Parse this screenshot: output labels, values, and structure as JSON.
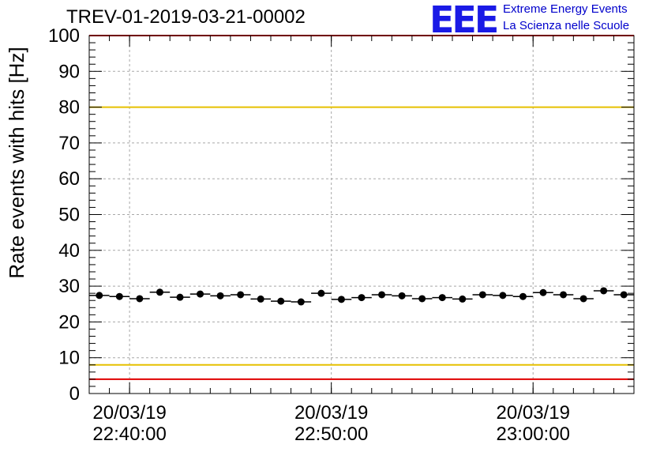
{
  "header": {
    "title": "TREV-01-2019-03-21-00002",
    "logo_mark": "EEE",
    "logo_line1": "Extreme Energy Events",
    "logo_line2": "La Scienza nelle Scuole"
  },
  "chart_data": {
    "type": "scatter",
    "title": "TREV-01-2019-03-21-00002",
    "xlabel": "",
    "ylabel": "Rate events with hits [Hz]",
    "ylim": [
      0,
      100
    ],
    "xlim": [
      "2019-03-20 22:38:00",
      "2019-03-20 23:05:00"
    ],
    "yticks": [
      0,
      10,
      20,
      30,
      40,
      50,
      60,
      70,
      80,
      90,
      100
    ],
    "xticks": [
      {
        "time": "2019-03-20 22:40:00",
        "date_label": "20/03/19",
        "time_label": "22:40:00"
      },
      {
        "time": "2019-03-20 22:50:00",
        "date_label": "20/03/19",
        "time_label": "22:50:00"
      },
      {
        "time": "2019-03-20 23:00:00",
        "date_label": "20/03/19",
        "time_label": "23:00:00"
      }
    ],
    "grid": true,
    "reference_lines": [
      {
        "y": 100,
        "color": "#e00000"
      },
      {
        "y": 80,
        "color": "#e6c000"
      },
      {
        "y": 8,
        "color": "#e6c000"
      },
      {
        "y": 4,
        "color": "#e00000"
      }
    ],
    "bin_width_minutes": 1,
    "series": [
      {
        "marker_color": "#000000",
        "x": [
          "22:38:30",
          "22:39:30",
          "22:40:30",
          "22:41:30",
          "22:42:30",
          "22:43:30",
          "22:44:30",
          "22:45:30",
          "22:46:30",
          "22:47:30",
          "22:48:30",
          "22:49:30",
          "22:50:30",
          "22:51:30",
          "22:52:30",
          "22:53:30",
          "22:54:30",
          "22:55:30",
          "22:56:30",
          "22:57:30",
          "22:58:30",
          "22:59:30",
          "23:00:30",
          "23:01:30",
          "23:02:30",
          "23:03:30",
          "23:04:30"
        ],
        "y": [
          27.4,
          27.1,
          26.5,
          28.3,
          26.9,
          27.8,
          27.3,
          27.6,
          26.4,
          25.8,
          25.6,
          28.0,
          26.3,
          26.8,
          27.6,
          27.3,
          26.5,
          26.8,
          26.4,
          27.6,
          27.4,
          27.1,
          28.2,
          27.6,
          26.5,
          28.7,
          27.6
        ]
      }
    ]
  }
}
